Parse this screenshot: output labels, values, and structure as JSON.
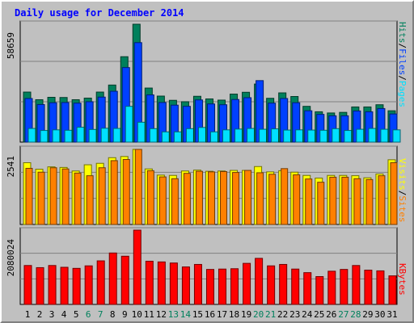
{
  "title": "Daily usage for December 2014",
  "colors": {
    "hits": "#00805c",
    "files": "#0040ff",
    "pages": "#00e0ff",
    "visits": "#ffff00",
    "sites": "#ff8000",
    "kbytes": "#ff0000",
    "weekend_day_label": "#00805c",
    "weekday_day_label": "#000000"
  },
  "chart_data": [
    {
      "type": "bar",
      "name": "hits-files-pages",
      "max_label": "58659",
      "categories": [
        "1",
        "2",
        "3",
        "4",
        "5",
        "6",
        "7",
        "8",
        "9",
        "10",
        "11",
        "12",
        "13",
        "14",
        "15",
        "16",
        "17",
        "18",
        "19",
        "20",
        "21",
        "22",
        "23",
        "24",
        "25",
        "26",
        "27",
        "28",
        "29",
        "30",
        "31"
      ],
      "weekend_days": [
        "6",
        "7",
        "13",
        "14",
        "20",
        "21",
        "27",
        "28"
      ],
      "ylim": [
        0,
        58659
      ],
      "series": [
        {
          "name": "Hits",
          "values": [
            24900,
            21100,
            22300,
            22200,
            21100,
            21900,
            24900,
            28400,
            42500,
            58659,
            26900,
            22900,
            20800,
            20100,
            22800,
            21500,
            20900,
            23900,
            24800,
            28900,
            21800,
            24500,
            22700,
            17800,
            15100,
            14500,
            14800,
            17500,
            17500,
            18600,
            15600
          ]
        },
        {
          "name": "Files",
          "values": [
            21700,
            18700,
            19600,
            19700,
            19400,
            20100,
            22400,
            25300,
            37100,
            49500,
            23500,
            19700,
            18400,
            17800,
            21000,
            19000,
            18600,
            21200,
            22100,
            30600,
            19400,
            21700,
            19600,
            15600,
            13800,
            13100,
            13100,
            15500,
            15100,
            16700,
            14000
          ]
        },
        {
          "name": "Pages",
          "values": [
            6800,
            5800,
            6100,
            5900,
            7400,
            6300,
            6900,
            6800,
            17800,
            9900,
            6700,
            5100,
            5100,
            6700,
            7300,
            5100,
            6100,
            6500,
            6800,
            6400,
            6600,
            6000,
            6100,
            6000,
            5900,
            6700,
            5800,
            6400,
            6800,
            6400,
            6100
          ]
        }
      ],
      "axis_labels": [
        "Pages",
        "Files",
        "Hits"
      ]
    },
    {
      "type": "bar",
      "name": "sites-visits",
      "max_label": "2541",
      "categories": [
        "1",
        "2",
        "3",
        "4",
        "5",
        "6",
        "7",
        "8",
        "9",
        "10",
        "11",
        "12",
        "13",
        "14",
        "15",
        "16",
        "17",
        "18",
        "19",
        "20",
        "21",
        "22",
        "23",
        "24",
        "25",
        "26",
        "27",
        "28",
        "29",
        "30",
        "31"
      ],
      "ylim": [
        0,
        2541
      ],
      "series": [
        {
          "name": "Visits",
          "values": [
            2090,
            1870,
            1950,
            1930,
            1810,
            2020,
            2070,
            2260,
            2300,
            2541,
            1880,
            1670,
            1660,
            1810,
            1840,
            1800,
            1810,
            1830,
            1830,
            1960,
            1780,
            1820,
            1770,
            1660,
            1570,
            1660,
            1660,
            1650,
            1580,
            1710,
            2190
          ]
        },
        {
          "name": "Sites",
          "values": [
            1900,
            1770,
            1920,
            1880,
            1740,
            1650,
            1920,
            2160,
            2200,
            2541,
            1820,
            1610,
            1550,
            1730,
            1800,
            1780,
            1790,
            1760,
            1830,
            1750,
            1700,
            1890,
            1680,
            1540,
            1430,
            1600,
            1600,
            1550,
            1520,
            1650,
            2090
          ]
        }
      ],
      "axis_labels": [
        "Sites",
        "Visits"
      ]
    },
    {
      "type": "bar",
      "name": "kbytes",
      "max_label": "2080024",
      "categories": [
        "1",
        "2",
        "3",
        "4",
        "5",
        "6",
        "7",
        "8",
        "9",
        "10",
        "11",
        "12",
        "13",
        "14",
        "15",
        "16",
        "17",
        "18",
        "19",
        "20",
        "21",
        "22",
        "23",
        "24",
        "25",
        "26",
        "27",
        "28",
        "29",
        "30",
        "31"
      ],
      "ylim": [
        0,
        2080024
      ],
      "series": [
        {
          "name": "KBytes",
          "values": [
            1090000,
            1030000,
            1090000,
            1040000,
            1010000,
            1080000,
            1220000,
            1440000,
            1350000,
            2080024,
            1210000,
            1190000,
            1160000,
            1050000,
            1120000,
            980000,
            990000,
            1000000,
            1150000,
            1290000,
            1080000,
            1120000,
            990000,
            890000,
            780000,
            930000,
            980000,
            1090000,
            960000,
            940000,
            800000
          ]
        }
      ],
      "axis_labels": [
        "KBytes"
      ]
    }
  ]
}
